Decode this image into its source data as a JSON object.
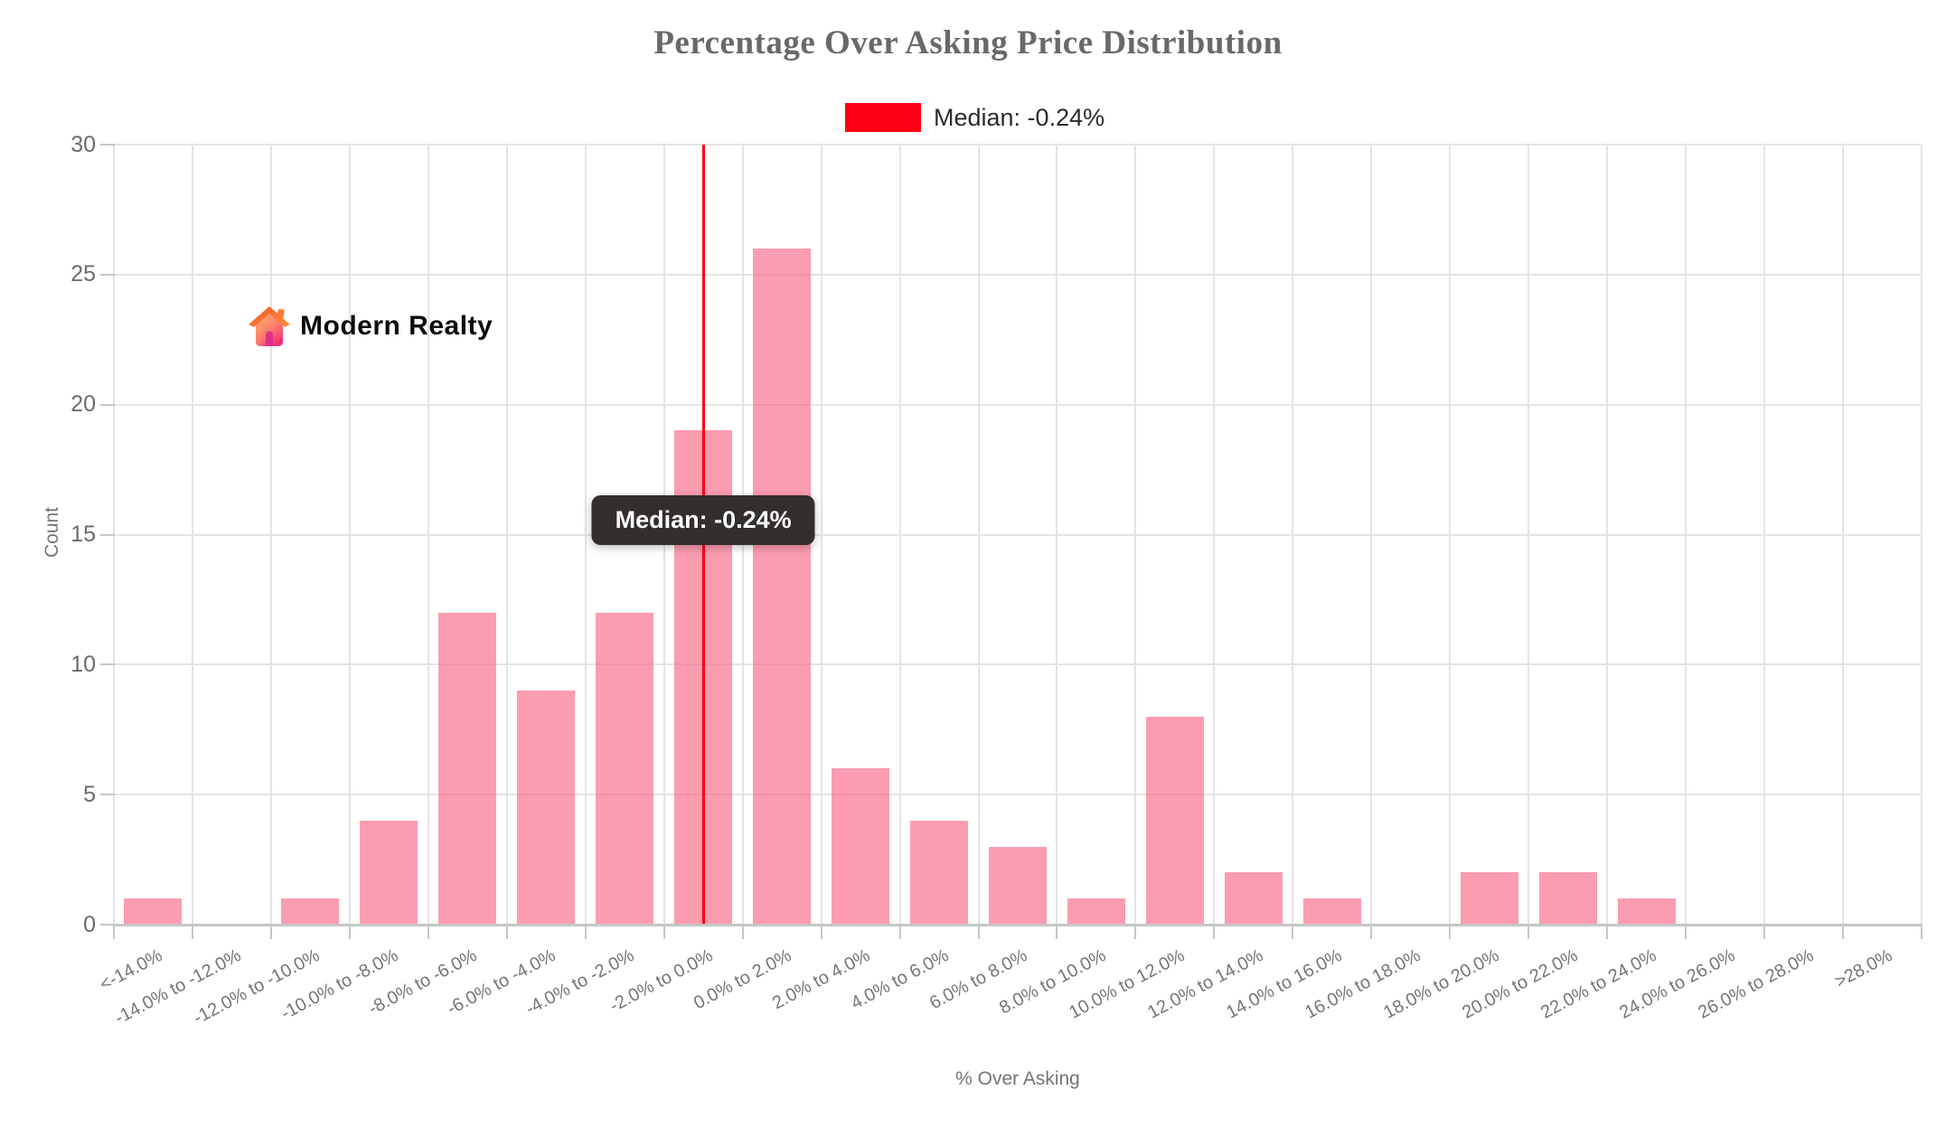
{
  "title": "Percentage Over Asking Price Distribution",
  "legend": {
    "label": "Median: -0.24%"
  },
  "tooltip": {
    "text": "Median: -0.24%"
  },
  "logo": {
    "text": "Modern Realty",
    "icon": "house-icon"
  },
  "colors": {
    "bar": "rgba(250,105,135,0.66)",
    "bar_solid": "#fc9bae",
    "median_line": "#fe0013",
    "tooltip_bg": "#332f2d",
    "title_text": "#696969",
    "axis_text": "#757575",
    "grid_line": "#e4e4e4"
  },
  "chart_data": {
    "type": "bar",
    "title": "Percentage Over Asking Price Distribution",
    "xlabel": "% Over Asking",
    "ylabel": "Count",
    "categories": [
      "<-14.0%",
      "-14.0% to -12.0%",
      "-12.0% to -10.0%",
      "-10.0% to -8.0%",
      "-8.0% to -6.0%",
      "-6.0% to -4.0%",
      "-4.0% to -2.0%",
      "-2.0% to 0.0%",
      "0.0% to 2.0%",
      "2.0% to 4.0%",
      "4.0% to 6.0%",
      "6.0% to 8.0%",
      "8.0% to 10.0%",
      "10.0% to 12.0%",
      "12.0% to 14.0%",
      "14.0% to 16.0%",
      "16.0% to 18.0%",
      "18.0% to 20.0%",
      "20.0% to 22.0%",
      "22.0% to 24.0%",
      "24.0% to 26.0%",
      "26.0% to 28.0%",
      ">28.0%"
    ],
    "values": [
      1,
      0,
      1,
      4,
      12,
      9,
      12,
      19,
      26,
      6,
      4,
      3,
      1,
      8,
      2,
      1,
      0,
      2,
      2,
      1,
      0,
      0,
      0
    ],
    "ylim": [
      0,
      30
    ],
    "yticks": [
      0,
      5,
      10,
      15,
      20,
      25,
      30
    ],
    "grid": true,
    "legend_position": "top-center",
    "median": {
      "value_percent": -0.24,
      "label": "Median: -0.24%",
      "line_category_index": 7
    }
  }
}
